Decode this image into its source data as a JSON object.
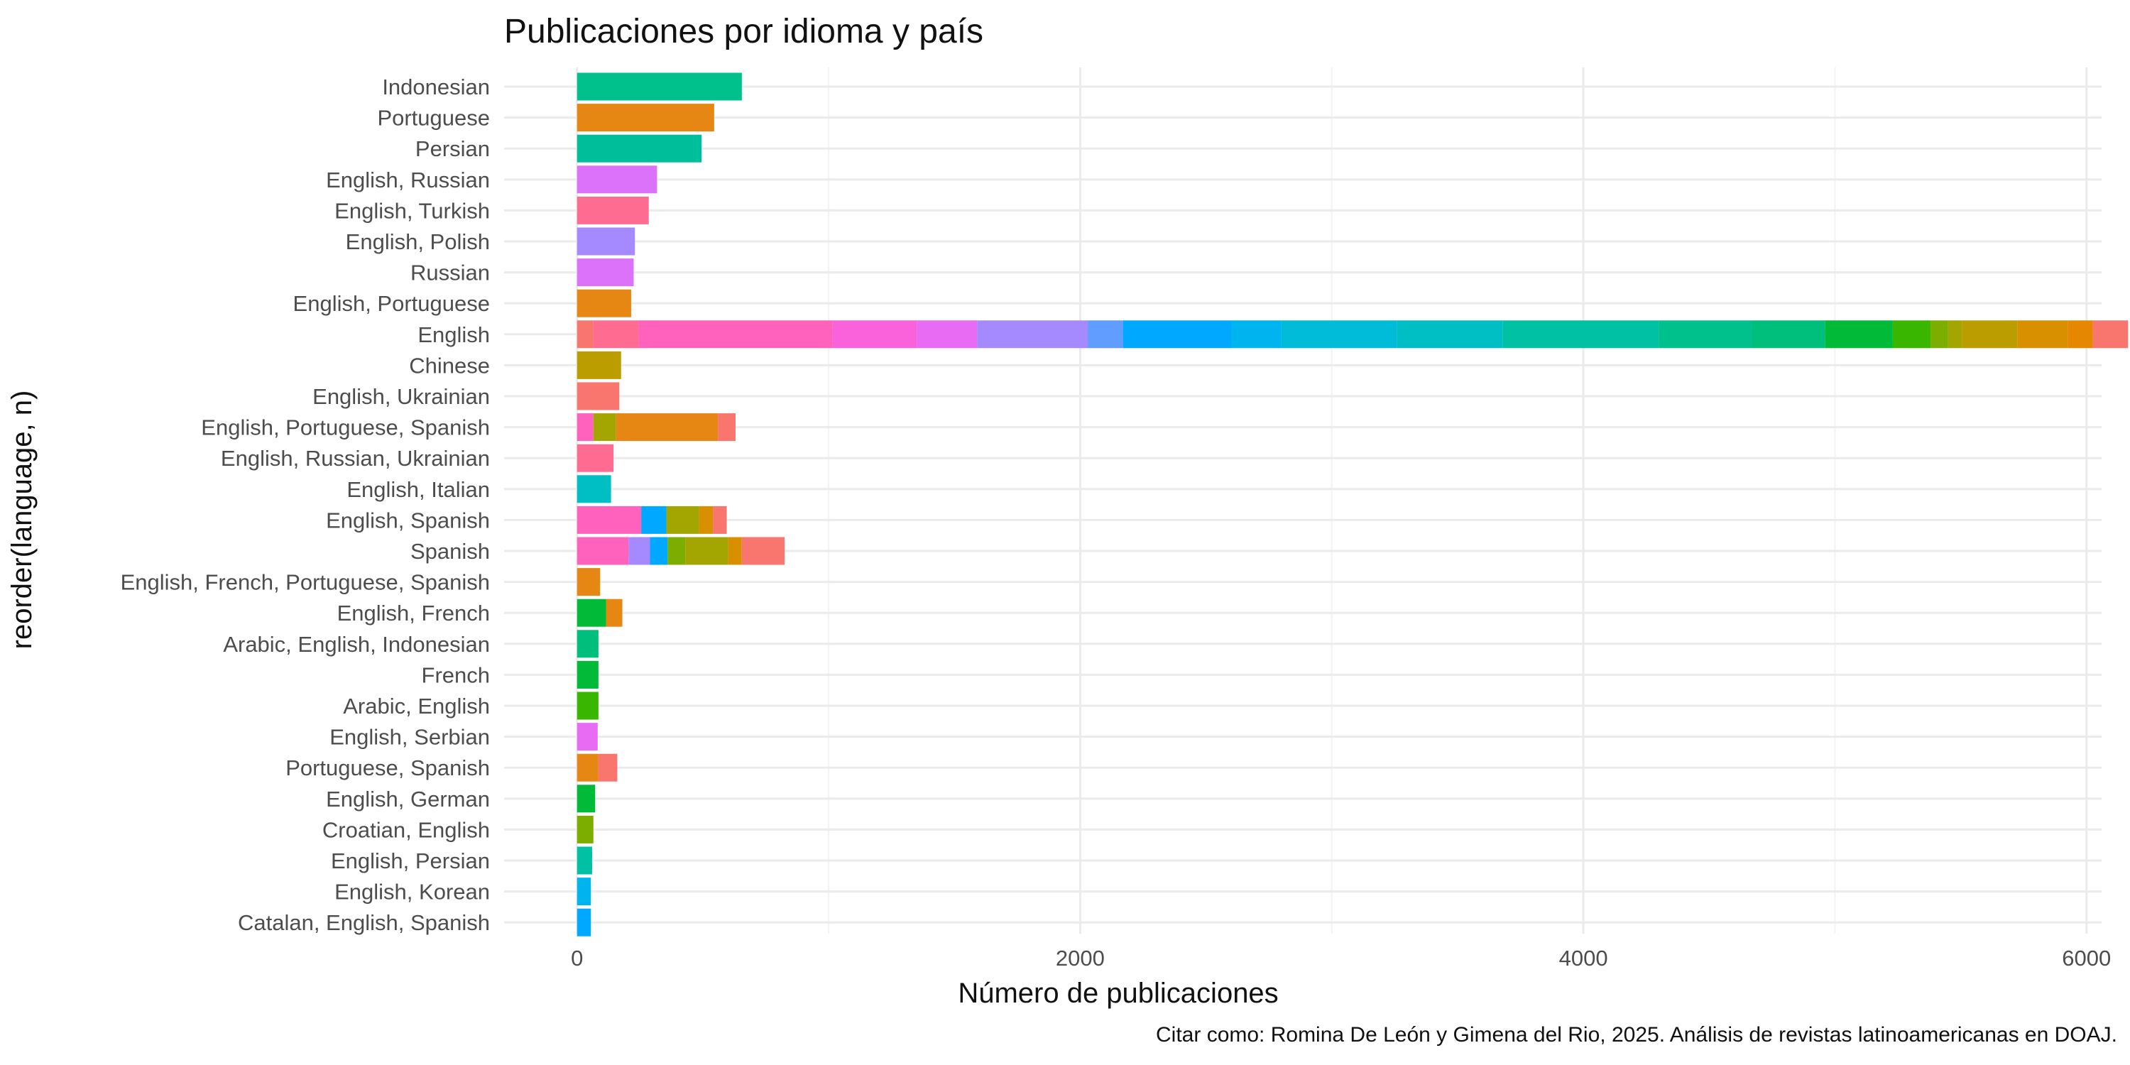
{
  "chart_data": {
    "type": "bar",
    "orientation": "horizontal",
    "stacked": true,
    "title": "Publicaciones por idioma y país",
    "xlabel": "Número de publicaciones",
    "ylabel": "reorder(language, n)",
    "caption": "Citar como: Romina De León y Gimena del Rio, 2025. Análisis de revistas latinoamericanas en DOAJ.",
    "xlim": [
      -290,
      6060
    ],
    "xticks": [
      0,
      2000,
      4000,
      6000
    ],
    "xtick_labels": [
      "0",
      "2000",
      "4000",
      "6000"
    ],
    "grid": true,
    "legend": "none",
    "categories": [
      {
        "label": "Indonesian",
        "segments": [
          {
            "value": 655,
            "color": "#00C08B"
          }
        ]
      },
      {
        "label": "Portuguese",
        "segments": [
          {
            "value": 545,
            "color": "#E68613"
          }
        ]
      },
      {
        "label": "Persian",
        "segments": [
          {
            "value": 495,
            "color": "#00BE99"
          }
        ]
      },
      {
        "label": "English, Russian",
        "segments": [
          {
            "value": 318,
            "color": "#DC71FA"
          }
        ]
      },
      {
        "label": "English, Turkish",
        "segments": [
          {
            "value": 285,
            "color": "#FF6C91"
          }
        ]
      },
      {
        "label": "English, Polish",
        "segments": [
          {
            "value": 230,
            "color": "#A58AFF"
          }
        ]
      },
      {
        "label": "Russian",
        "segments": [
          {
            "value": 225,
            "color": "#DC71FA"
          }
        ]
      },
      {
        "label": "English, Portuguese",
        "segments": [
          {
            "value": 215,
            "color": "#E68613"
          }
        ]
      },
      {
        "label": "English",
        "segments": [
          {
            "value": 65,
            "color": "#F8766D"
          },
          {
            "value": 180,
            "color": "#FF6C91"
          },
          {
            "value": 770,
            "color": "#FF62BC"
          },
          {
            "value": 335,
            "color": "#FA62DB"
          },
          {
            "value": 240,
            "color": "#E76BF3"
          },
          {
            "value": 440,
            "color": "#A58AFF"
          },
          {
            "value": 140,
            "color": "#619CFF"
          },
          {
            "value": 430,
            "color": "#00A9FF"
          },
          {
            "value": 200,
            "color": "#00B4F0"
          },
          {
            "value": 460,
            "color": "#00BCD8"
          },
          {
            "value": 420,
            "color": "#00BFC4"
          },
          {
            "value": 620,
            "color": "#00C1A3"
          },
          {
            "value": 370,
            "color": "#00C08B"
          },
          {
            "value": 290,
            "color": "#00BF7D"
          },
          {
            "value": 270,
            "color": "#00BA38"
          },
          {
            "value": 150,
            "color": "#39B600"
          },
          {
            "value": 70,
            "color": "#7CAE00"
          },
          {
            "value": 55,
            "color": "#A3A500"
          },
          {
            "value": 220,
            "color": "#BB9D00"
          },
          {
            "value": 200,
            "color": "#D89000"
          },
          {
            "value": 100,
            "color": "#E58700"
          },
          {
            "value": 140,
            "color": "#F8766D"
          }
        ]
      },
      {
        "label": "Chinese",
        "segments": [
          {
            "value": 175,
            "color": "#BB9D00"
          }
        ]
      },
      {
        "label": "English, Ukrainian",
        "segments": [
          {
            "value": 168,
            "color": "#F8766D"
          }
        ]
      },
      {
        "label": "English, Portuguese, Spanish",
        "segments": [
          {
            "value": 65,
            "color": "#FF62BC"
          },
          {
            "value": 90,
            "color": "#A3A500"
          },
          {
            "value": 405,
            "color": "#E68613"
          },
          {
            "value": 70,
            "color": "#F8766D"
          }
        ]
      },
      {
        "label": "English, Russian, Ukrainian",
        "segments": [
          {
            "value": 145,
            "color": "#FF6C91"
          }
        ]
      },
      {
        "label": "English, Italian",
        "segments": [
          {
            "value": 135,
            "color": "#00BFC4"
          }
        ]
      },
      {
        "label": "English, Spanish",
        "segments": [
          {
            "value": 255,
            "color": "#FF62BC"
          },
          {
            "value": 100,
            "color": "#00A9FF"
          },
          {
            "value": 130,
            "color": "#A3A500"
          },
          {
            "value": 55,
            "color": "#D89000"
          },
          {
            "value": 55,
            "color": "#F8766D"
          }
        ]
      },
      {
        "label": "Spanish",
        "segments": [
          {
            "value": 205,
            "color": "#FF62BC"
          },
          {
            "value": 85,
            "color": "#A58AFF"
          },
          {
            "value": 70,
            "color": "#00A9FF"
          },
          {
            "value": 70,
            "color": "#7CAE00"
          },
          {
            "value": 170,
            "color": "#A3A500"
          },
          {
            "value": 55,
            "color": "#D89000"
          },
          {
            "value": 170,
            "color": "#F8766D"
          }
        ]
      },
      {
        "label": "English, French, Portuguese, Spanish",
        "segments": [
          {
            "value": 92,
            "color": "#E68613"
          }
        ]
      },
      {
        "label": "English, French",
        "segments": [
          {
            "value": 115,
            "color": "#00BA38"
          },
          {
            "value": 65,
            "color": "#E68613"
          }
        ]
      },
      {
        "label": "Arabic, English, Indonesian",
        "segments": [
          {
            "value": 85,
            "color": "#00BF7D"
          }
        ]
      },
      {
        "label": "French",
        "segments": [
          {
            "value": 85,
            "color": "#00BA38"
          }
        ]
      },
      {
        "label": "Arabic, English",
        "segments": [
          {
            "value": 85,
            "color": "#39B600"
          }
        ]
      },
      {
        "label": "English, Serbian",
        "segments": [
          {
            "value": 82,
            "color": "#E76BF3"
          }
        ]
      },
      {
        "label": "Portuguese, Spanish",
        "segments": [
          {
            "value": 85,
            "color": "#E68613"
          },
          {
            "value": 75,
            "color": "#F8766D"
          }
        ]
      },
      {
        "label": "English, German",
        "segments": [
          {
            "value": 72,
            "color": "#00BA38"
          }
        ]
      },
      {
        "label": "Croatian, English",
        "segments": [
          {
            "value": 65,
            "color": "#7CAE00"
          }
        ]
      },
      {
        "label": "English, Persian",
        "segments": [
          {
            "value": 60,
            "color": "#00C1A3"
          }
        ]
      },
      {
        "label": "English, Korean",
        "segments": [
          {
            "value": 55,
            "color": "#00B4F0"
          }
        ]
      },
      {
        "label": "Catalan, English, Spanish",
        "segments": [
          {
            "value": 55,
            "color": "#00A9FF"
          }
        ]
      }
    ]
  }
}
